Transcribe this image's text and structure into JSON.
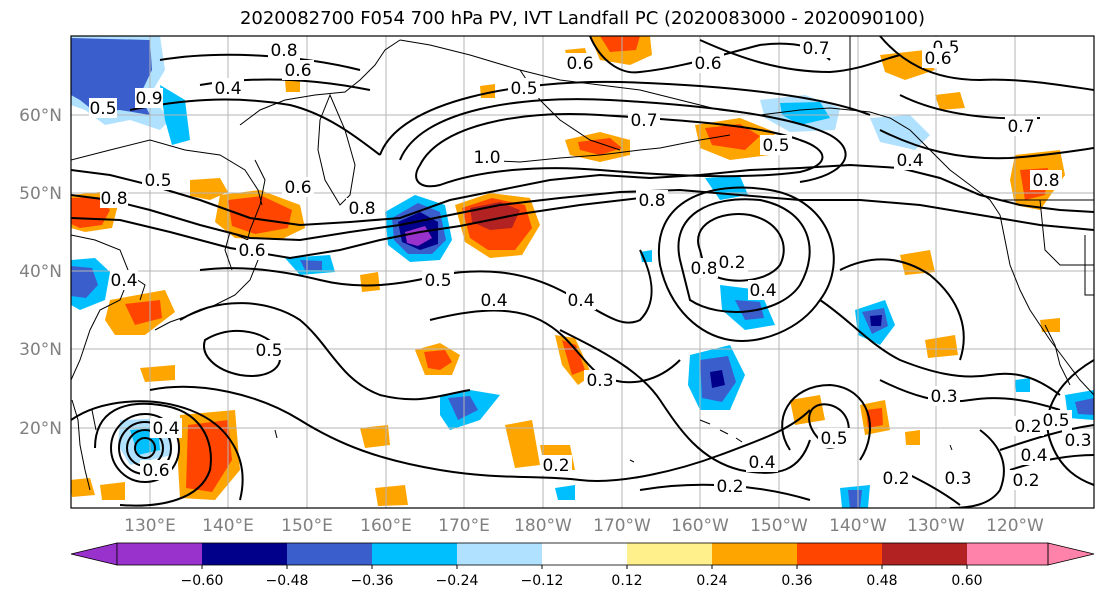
{
  "title": "2020082700 F054 700 hPa PV, IVT Landfall PC (2020083000 - 2020090100)",
  "latitude_labels": [
    "60°N",
    "50°N",
    "40°N",
    "30°N",
    "20°N"
  ],
  "longitude_labels": [
    "130°E",
    "140°E",
    "150°E",
    "160°E",
    "170°E",
    "180°W",
    "170°W",
    "160°W",
    "150°W",
    "140°W",
    "130°W",
    "120°W"
  ],
  "colorbar": {
    "colors": [
      "#9932cc",
      "#00008b",
      "#3a5fcd",
      "#00bfff",
      "#b0e2ff",
      "#ffffff",
      "#fff08c",
      "#ffa500",
      "#ff4500",
      "#b22222",
      "#ff82ab"
    ],
    "tick_labels": [
      "−0.60",
      "−0.48",
      "−0.36",
      "−0.24",
      "−0.12",
      "0.12",
      "0.24",
      "0.36",
      "0.48",
      "0.60"
    ]
  },
  "contour_labels": [
    "0.8",
    "0.6",
    "0.4",
    "0.5",
    "0.9",
    "0.6",
    "0.5",
    "0.7",
    "0.6",
    "0.5",
    "0.5",
    "0.7",
    "0.6",
    "0.7",
    "0.4",
    "0.8",
    "0.6",
    "1.0",
    "0.8",
    "0.8",
    "0.6",
    "0.5",
    "0.8",
    "0.4",
    "0.8",
    "0.5",
    "0.4",
    "0.4",
    "0.2",
    "0.3",
    "0.4",
    "0.5",
    "0.3",
    "0.4",
    "0.6",
    "0.2",
    "0.2",
    "0.4",
    "0.5",
    "0.2",
    "0.2",
    "0.3",
    "0.2",
    "0.4",
    "0.5",
    "0.3"
  ]
}
